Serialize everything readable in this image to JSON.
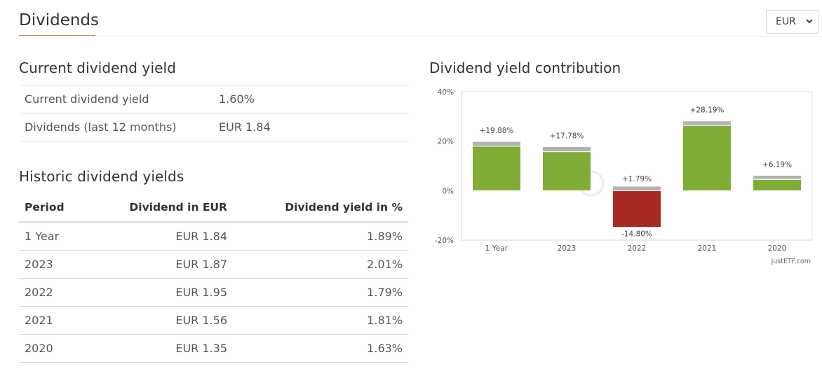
{
  "header": {
    "title": "Dividends",
    "currency_value": "EUR"
  },
  "current": {
    "title": "Current dividend yield",
    "rows": [
      {
        "label": "Current dividend yield",
        "value": "1.60%"
      },
      {
        "label": "Dividends (last 12 months)",
        "value": "EUR 1.84"
      }
    ]
  },
  "historic": {
    "title": "Historic dividend yields",
    "headers": [
      "Period",
      "Dividend in EUR",
      "Dividend yield in %"
    ],
    "rows": [
      {
        "period": "1 Year",
        "dividend": "EUR 1.84",
        "yield": "1.89%"
      },
      {
        "period": "2023",
        "dividend": "EUR 1.87",
        "yield": "2.01%"
      },
      {
        "period": "2022",
        "dividend": "EUR 1.95",
        "yield": "1.79%"
      },
      {
        "period": "2021",
        "dividend": "EUR 1.56",
        "yield": "1.81%"
      },
      {
        "period": "2020",
        "dividend": "EUR 1.35",
        "yield": "1.63%"
      }
    ]
  },
  "chart_data": {
    "type": "bar",
    "title": "Dividend yield contribution",
    "categories": [
      "1 Year",
      "2023",
      "2022",
      "2021",
      "2020"
    ],
    "total_labels": [
      "+19.88%",
      "+17.78%",
      "+1.79%",
      "+28.19%",
      "+6.19%"
    ],
    "price_return": [
      17.99,
      15.77,
      -14.8,
      26.38,
      4.56
    ],
    "dividend_yield": [
      1.89,
      2.01,
      1.79,
      1.81,
      1.63
    ],
    "negative_label": "-14.80%",
    "yticks": [
      "40%",
      "20%",
      "0%",
      "-20%"
    ],
    "ylim": [
      -20,
      40
    ],
    "grid": false,
    "colors": {
      "positive": "#7fad35",
      "negative": "#a82a22",
      "dividend": "#b2b2b2"
    },
    "credit": "justETF.com"
  }
}
